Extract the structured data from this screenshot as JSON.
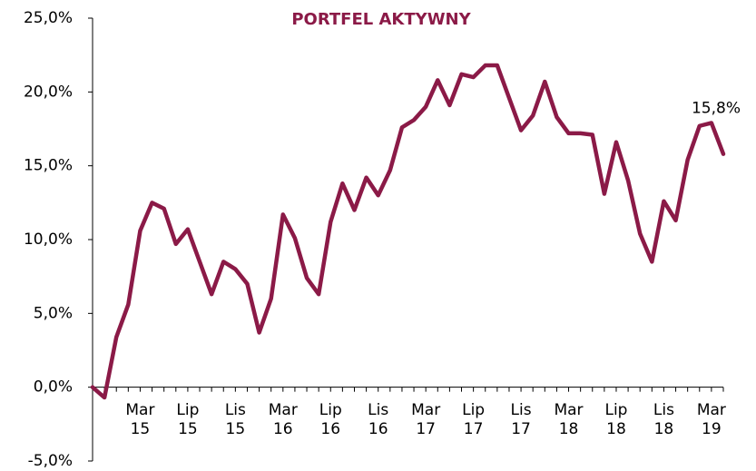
{
  "chart_data": {
    "type": "line",
    "title": "PORTFEL AKTYWNY",
    "categories": [
      null,
      null,
      null,
      null,
      "Mar 15",
      null,
      null,
      null,
      "Lip 15",
      null,
      null,
      null,
      "Lis 15",
      null,
      null,
      null,
      "Mar 16",
      null,
      null,
      null,
      "Lip 16",
      null,
      null,
      null,
      "Lis 16",
      null,
      null,
      null,
      "Mar 17",
      null,
      null,
      null,
      "Lip 17",
      null,
      null,
      null,
      "Lis 17",
      null,
      null,
      null,
      "Mar 18",
      null,
      null,
      null,
      "Lip 18",
      null,
      null,
      null,
      "Lis 18",
      null,
      null,
      null,
      "Mar 19",
      null
    ],
    "values": [
      0.0,
      -0.7,
      3.4,
      5.6,
      10.6,
      12.5,
      12.1,
      9.7,
      10.7,
      8.5,
      6.3,
      8.5,
      8.0,
      7.0,
      3.7,
      6.0,
      11.7,
      10.1,
      7.4,
      6.3,
      11.2,
      13.8,
      12.0,
      14.2,
      13.0,
      14.7,
      17.6,
      18.1,
      19.0,
      20.8,
      19.1,
      21.2,
      21.0,
      21.8,
      21.8,
      19.6,
      17.4,
      18.4,
      20.7,
      18.3,
      17.2,
      17.2,
      17.1,
      13.1,
      16.6,
      14.0,
      10.4,
      8.5,
      12.6,
      11.3,
      15.4,
      17.7,
      17.9,
      15.8
    ],
    "value_labels": [
      null,
      null,
      null,
      null,
      null,
      null,
      null,
      null,
      null,
      null,
      null,
      null,
      null,
      null,
      null,
      null,
      null,
      null,
      null,
      null,
      null,
      null,
      null,
      null,
      null,
      null,
      null,
      null,
      null,
      null,
      null,
      null,
      null,
      null,
      null,
      null,
      null,
      null,
      null,
      null,
      null,
      null,
      null,
      null,
      null,
      null,
      null,
      null,
      null,
      null,
      null,
      null,
      null,
      "15,8%"
    ],
    "color": "#8b1a47",
    "ylim": [
      -5,
      25
    ],
    "yticks": [
      {
        "value": -5,
        "label": "-5,0%"
      },
      {
        "value": 0,
        "label": "0,0%"
      },
      {
        "value": 5,
        "label": "5,0%"
      },
      {
        "value": 10,
        "label": "10,0%"
      },
      {
        "value": 15,
        "label": "15,0%"
      },
      {
        "value": 20,
        "label": "20,0%"
      },
      {
        "value": 25,
        "label": "25,0%"
      }
    ],
    "grid": false
  }
}
